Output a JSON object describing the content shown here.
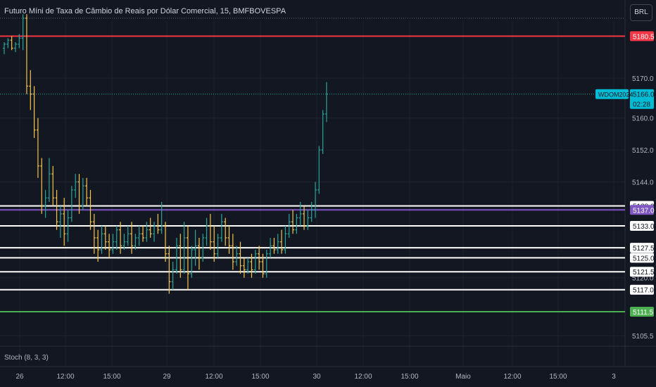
{
  "header": {
    "title": "Futuro Míni de Taxa de Câmbio de Reais por Dólar Comercial, 15, BMFBOVESPA",
    "currency_button": "BRL"
  },
  "indicator": {
    "label": "Stoch (8, 3, 3)"
  },
  "symbol_tag": {
    "symbol": "WDOM2024",
    "price": "5166.0",
    "countdown": "02:28"
  },
  "chart_data": {
    "type": "candlestick",
    "x_tick_labels": [
      "26",
      "12:00",
      "15:00",
      "29",
      "12:00",
      "15:00",
      "30",
      "12:00",
      "15:00",
      "Maio",
      "12:00",
      "15:00",
      "3"
    ],
    "y_tick_labels": [
      "5105.5",
      "5170.0",
      "5160.0",
      "5152.0",
      "5144.0",
      "5120.0"
    ],
    "ylim": [
      5102,
      5196
    ],
    "current_price": 5166.0,
    "price_colors": {
      "up": "#26a69a",
      "down": "#f7c548"
    },
    "horizontal_levels": [
      {
        "value": 5180.5,
        "label": "5180.5",
        "color": "#f23645"
      },
      {
        "value": 5138.0,
        "label": "5138.0",
        "color": "#ffffff"
      },
      {
        "value": 5137.0,
        "label": "5137.0",
        "color": "#7e57c2"
      },
      {
        "value": 5133.0,
        "label": "5133.0",
        "color": "#ffffff"
      },
      {
        "value": 5127.5,
        "label": "5127.5",
        "color": "#ffffff"
      },
      {
        "value": 5125.0,
        "label": "5125.0",
        "color": "#ffffff"
      },
      {
        "value": 5121.5,
        "label": "5121.5",
        "color": "#ffffff"
      },
      {
        "value": 5117.0,
        "label": "5117.0",
        "color": "#ffffff"
      },
      {
        "value": 5111.5,
        "label": "5111.5",
        "color": "#4caf50"
      }
    ],
    "dotted_levels": [
      5185.0,
      5166.0
    ],
    "candles": [
      [
        5177.5,
        5179.0,
        5176.0,
        5178.5
      ],
      [
        5178.5,
        5180.0,
        5177.5,
        5179.5
      ],
      [
        5179.5,
        5180.5,
        5177.0,
        5177.5
      ],
      [
        5177.5,
        5179.0,
        5176.5,
        5178.5
      ],
      [
        5178.5,
        5181.0,
        5177.5,
        5180.0
      ],
      [
        5180.0,
        5186.0,
        5177.0,
        5185.0
      ],
      [
        5185.0,
        5186.0,
        5166.0,
        5168.0
      ],
      [
        5168.0,
        5172.0,
        5162.0,
        5166.0
      ],
      [
        5166.0,
        5168.0,
        5155.0,
        5157.0
      ],
      [
        5157.0,
        5160.0,
        5145.0,
        5148.0
      ],
      [
        5148.0,
        5150.0,
        5136.0,
        5138.0
      ],
      [
        5138.0,
        5142.0,
        5135.0,
        5140.0
      ],
      [
        5140.0,
        5150.0,
        5139.0,
        5146.0
      ],
      [
        5146.0,
        5148.0,
        5138.0,
        5140.0
      ],
      [
        5140.0,
        5142.0,
        5132.0,
        5134.0
      ],
      [
        5134.0,
        5138.0,
        5130.0,
        5136.0
      ],
      [
        5136.0,
        5140.0,
        5128.0,
        5131.0
      ],
      [
        5131.0,
        5137.0,
        5129.0,
        5135.0
      ],
      [
        5135.0,
        5143.0,
        5134.0,
        5142.0
      ],
      [
        5142.0,
        5146.0,
        5140.0,
        5144.0
      ],
      [
        5144.0,
        5146.0,
        5136.0,
        5138.0
      ],
      [
        5138.0,
        5145.0,
        5137.0,
        5143.0
      ],
      [
        5143.0,
        5145.0,
        5138.0,
        5140.0
      ],
      [
        5140.0,
        5142.0,
        5132.0,
        5134.0
      ],
      [
        5134.0,
        5136.0,
        5126.0,
        5130.0
      ],
      [
        5130.0,
        5132.0,
        5124.0,
        5127.0
      ],
      [
        5127.0,
        5133.0,
        5126.0,
        5131.0
      ],
      [
        5131.0,
        5133.0,
        5127.0,
        5129.0
      ],
      [
        5129.0,
        5131.0,
        5125.0,
        5127.0
      ],
      [
        5127.0,
        5131.0,
        5126.0,
        5129.0
      ],
      [
        5129.0,
        5133.0,
        5127.0,
        5132.0
      ],
      [
        5132.0,
        5134.0,
        5126.0,
        5128.0
      ],
      [
        5128.0,
        5131.0,
        5127.0,
        5129.0
      ],
      [
        5129.0,
        5133.0,
        5128.0,
        5131.0
      ],
      [
        5131.0,
        5134.0,
        5126.0,
        5128.0
      ],
      [
        5128.0,
        5131.0,
        5127.0,
        5130.0
      ],
      [
        5130.0,
        5133.0,
        5128.0,
        5131.0
      ],
      [
        5131.0,
        5133.0,
        5129.0,
        5130.0
      ],
      [
        5130.0,
        5134.0,
        5129.0,
        5132.0
      ],
      [
        5132.0,
        5135.0,
        5130.0,
        5131.0
      ],
      [
        5131.0,
        5134.0,
        5129.0,
        5133.0
      ],
      [
        5133.0,
        5136.0,
        5131.0,
        5132.0
      ],
      [
        5132.0,
        5139.0,
        5131.0,
        5133.0
      ],
      [
        5133.0,
        5134.0,
        5124.0,
        5126.0
      ],
      [
        5126.0,
        5128.0,
        5116.0,
        5119.0
      ],
      [
        5119.0,
        5124.0,
        5117.0,
        5122.0
      ],
      [
        5122.0,
        5130.0,
        5121.0,
        5128.0
      ],
      [
        5128.0,
        5131.0,
        5120.0,
        5122.0
      ],
      [
        5122.0,
        5134.0,
        5121.0,
        5130.0
      ],
      [
        5130.0,
        5133.0,
        5117.0,
        5121.0
      ],
      [
        5121.0,
        5128.0,
        5120.0,
        5127.0
      ],
      [
        5127.0,
        5132.0,
        5123.0,
        5128.0
      ],
      [
        5128.0,
        5130.0,
        5122.0,
        5125.0
      ],
      [
        5125.0,
        5131.0,
        5124.0,
        5130.0
      ],
      [
        5130.0,
        5135.0,
        5128.0,
        5133.0
      ],
      [
        5133.0,
        5136.0,
        5127.0,
        5129.0
      ],
      [
        5129.0,
        5133.0,
        5124.0,
        5126.0
      ],
      [
        5126.0,
        5131.0,
        5125.0,
        5130.0
      ],
      [
        5130.0,
        5136.0,
        5129.0,
        5134.0
      ],
      [
        5134.0,
        5135.0,
        5128.0,
        5130.0
      ],
      [
        5130.0,
        5133.0,
        5126.0,
        5128.0
      ],
      [
        5128.0,
        5131.0,
        5122.0,
        5124.0
      ],
      [
        5124.0,
        5128.0,
        5123.0,
        5126.0
      ],
      [
        5126.0,
        5129.0,
        5121.0,
        5123.0
      ],
      [
        5123.0,
        5125.0,
        5120.0,
        5122.0
      ],
      [
        5122.0,
        5125.0,
        5121.0,
        5124.0
      ],
      [
        5124.0,
        5126.0,
        5120.0,
        5122.0
      ],
      [
        5122.0,
        5127.0,
        5121.0,
        5126.0
      ],
      [
        5126.0,
        5128.0,
        5122.0,
        5124.0
      ],
      [
        5124.0,
        5126.0,
        5120.0,
        5121.0
      ],
      [
        5121.0,
        5127.0,
        5120.0,
        5126.0
      ],
      [
        5126.0,
        5130.0,
        5125.0,
        5128.0
      ],
      [
        5128.0,
        5130.0,
        5126.0,
        5127.0
      ],
      [
        5127.0,
        5131.0,
        5126.0,
        5129.0
      ],
      [
        5129.0,
        5132.0,
        5126.0,
        5127.0
      ],
      [
        5127.0,
        5133.0,
        5126.0,
        5131.0
      ],
      [
        5131.0,
        5136.0,
        5130.0,
        5134.0
      ],
      [
        5134.0,
        5137.0,
        5131.0,
        5132.0
      ],
      [
        5132.0,
        5136.0,
        5131.0,
        5135.0
      ],
      [
        5135.0,
        5139.0,
        5133.0,
        5136.0
      ],
      [
        5136.0,
        5138.0,
        5132.0,
        5133.0
      ],
      [
        5133.0,
        5137.0,
        5132.0,
        5135.0
      ],
      [
        5135.0,
        5139.0,
        5134.0,
        5137.0
      ],
      [
        5137.0,
        5144.0,
        5135.0,
        5142.0
      ],
      [
        5142.0,
        5153.0,
        5141.0,
        5152.0
      ],
      [
        5152.0,
        5162.0,
        5151.0,
        5161.0
      ],
      [
        5161.0,
        5169.0,
        5159.0,
        5166.0
      ]
    ]
  }
}
